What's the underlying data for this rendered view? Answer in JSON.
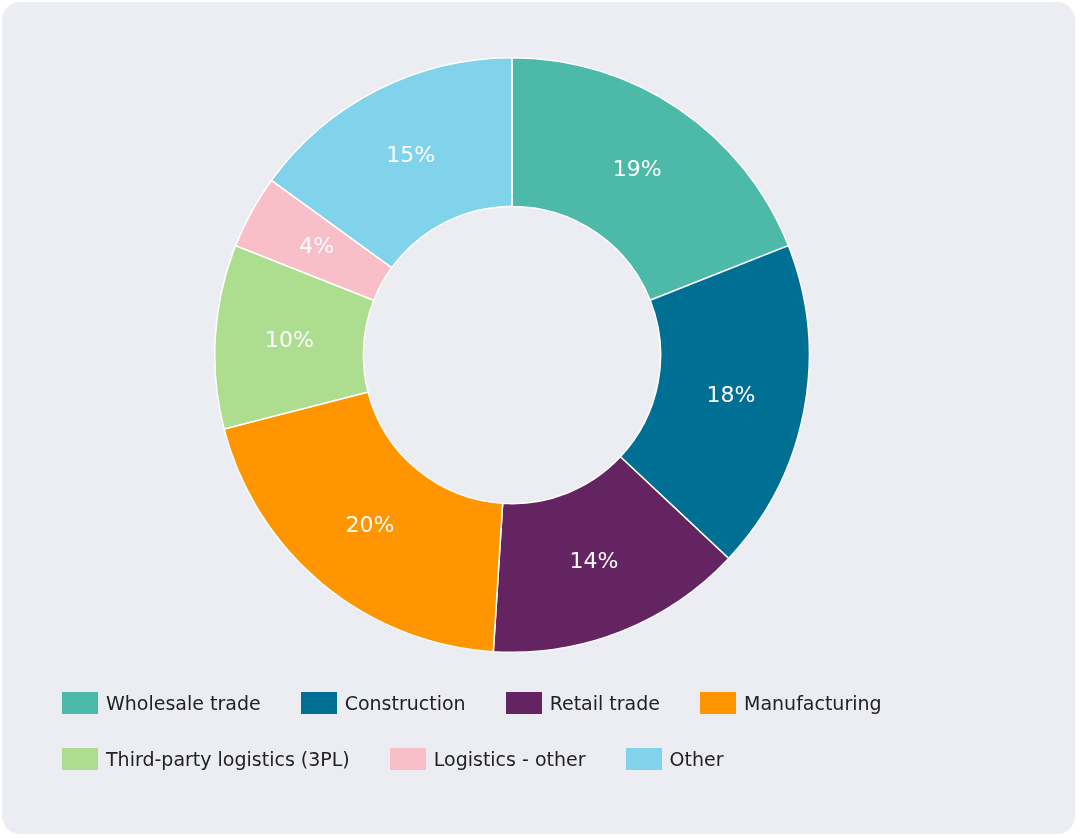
{
  "chart_data": {
    "type": "donut",
    "categories": [
      "Wholesale trade",
      "Construction",
      "Retail trade",
      "Manufacturing",
      "Third-party logistics (3PL)",
      "Logistics - other",
      "Other"
    ],
    "values": [
      19,
      18,
      14,
      20,
      10,
      4,
      15
    ],
    "value_labels": [
      "19%",
      "18%",
      "14%",
      "20%",
      "10%",
      "4%",
      "15%"
    ],
    "colors": [
      "#4dbaa9",
      "#006f94",
      "#632461",
      "#ff9500",
      "#addd8e",
      "#f9bfc9",
      "#81d2eb"
    ],
    "legend": "bottom"
  }
}
